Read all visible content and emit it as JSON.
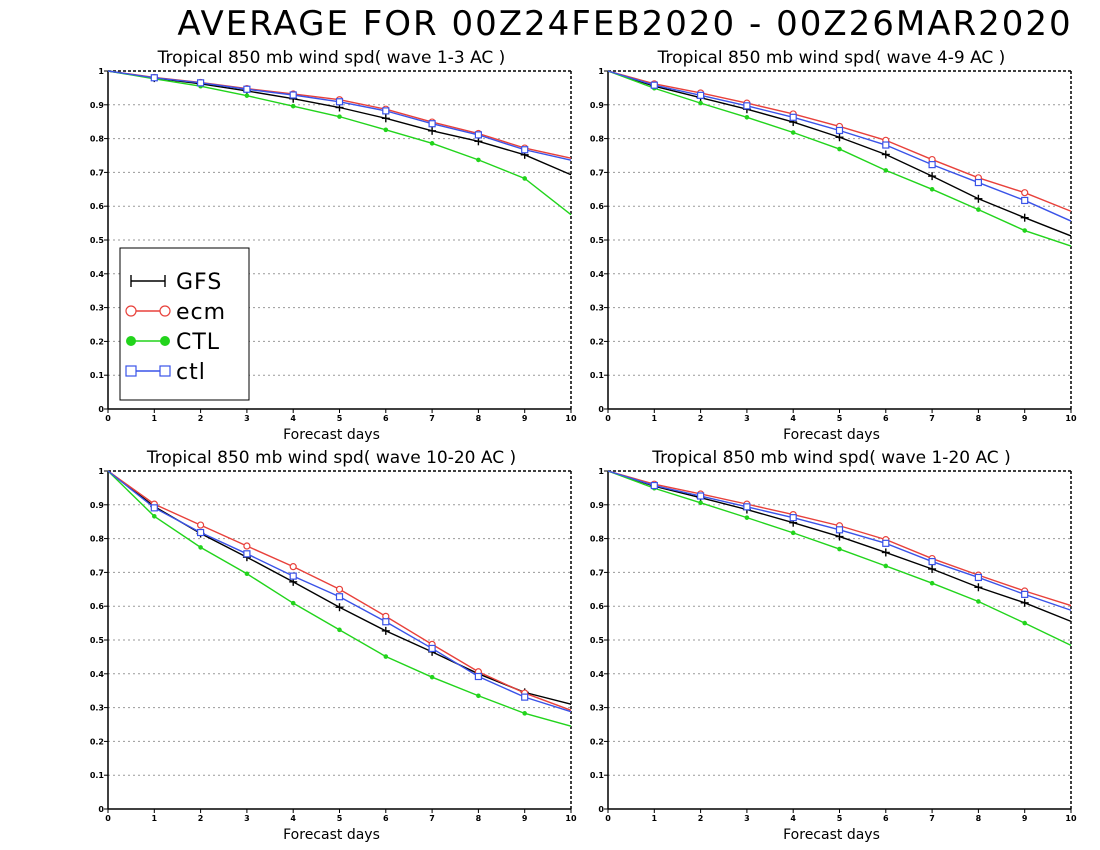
{
  "page": {
    "title": "AVERAGE FOR 00Z24FEB2020 - 00Z26MAR2020"
  },
  "colors": {
    "GFS": "#000000",
    "ecm": "#e8413b",
    "CTL": "#22d41c",
    "ctl": "#3a53e8",
    "grid": "#9a9a9a"
  },
  "legend": {
    "placement": "inside lower-left of first panel",
    "entries": [
      {
        "label": "GFS",
        "marker": "plus"
      },
      {
        "label": "ecm",
        "marker": "circle"
      },
      {
        "label": "CTL",
        "marker": "filled-circle"
      },
      {
        "label": "ctl",
        "marker": "square"
      }
    ]
  },
  "chart_data": [
    {
      "type": "line",
      "title": "Tropical 850 mb wind spd( wave 1-3 AC )",
      "xlabel": "Forecast days",
      "ylabel": "",
      "x": [
        0,
        1,
        2,
        3,
        4,
        5,
        6,
        7,
        8,
        9,
        10
      ],
      "xticks": [
        "0",
        "1",
        "2",
        "3",
        "4",
        "5",
        "6",
        "7",
        "8",
        "9",
        "10"
      ],
      "yticks": [
        "0",
        "0.1",
        "0.2",
        "0.3",
        "0.4",
        "0.5",
        "0.6",
        "0.7",
        "0.8",
        "0.9",
        "1"
      ],
      "xlim": [
        0,
        10
      ],
      "ylim": [
        0,
        1
      ],
      "grid": true,
      "legend": true,
      "series": [
        {
          "name": "GFS",
          "values": [
            1.0,
            0.979,
            0.962,
            0.941,
            0.918,
            0.892,
            0.86,
            0.823,
            0.792,
            0.752,
            0.693
          ]
        },
        {
          "name": "ecm",
          "values": [
            1.0,
            0.981,
            0.966,
            0.948,
            0.932,
            0.915,
            0.887,
            0.849,
            0.815,
            0.772,
            0.742
          ]
        },
        {
          "name": "CTL",
          "values": [
            1.0,
            0.977,
            0.955,
            0.927,
            0.896,
            0.865,
            0.826,
            0.786,
            0.737,
            0.682,
            0.575
          ]
        },
        {
          "name": "ctl",
          "values": [
            1.0,
            0.98,
            0.965,
            0.946,
            0.929,
            0.909,
            0.882,
            0.844,
            0.811,
            0.767,
            0.736
          ]
        }
      ]
    },
    {
      "type": "line",
      "title": "Tropical 850 mb wind spd( wave 4-9 AC )",
      "xlabel": "Forecast days",
      "ylabel": "",
      "x": [
        0,
        1,
        2,
        3,
        4,
        5,
        6,
        7,
        8,
        9,
        10
      ],
      "xticks": [
        "0",
        "1",
        "2",
        "3",
        "4",
        "5",
        "6",
        "7",
        "8",
        "9",
        "10"
      ],
      "yticks": [
        "0",
        "0.1",
        "0.2",
        "0.3",
        "0.4",
        "0.5",
        "0.6",
        "0.7",
        "0.8",
        "0.9",
        "1"
      ],
      "xlim": [
        0,
        10
      ],
      "ylim": [
        0,
        1
      ],
      "grid": true,
      "legend": false,
      "series": [
        {
          "name": "GFS",
          "values": [
            1.0,
            0.955,
            0.921,
            0.887,
            0.849,
            0.804,
            0.753,
            0.689,
            0.622,
            0.566,
            0.512
          ]
        },
        {
          "name": "ecm",
          "values": [
            1.0,
            0.962,
            0.935,
            0.905,
            0.873,
            0.836,
            0.795,
            0.738,
            0.684,
            0.64,
            0.585
          ]
        },
        {
          "name": "CTL",
          "values": [
            1.0,
            0.949,
            0.905,
            0.863,
            0.818,
            0.769,
            0.706,
            0.65,
            0.59,
            0.528,
            0.482
          ]
        },
        {
          "name": "ctl",
          "values": [
            1.0,
            0.958,
            0.928,
            0.897,
            0.863,
            0.824,
            0.781,
            0.723,
            0.67,
            0.617,
            0.556
          ]
        }
      ]
    },
    {
      "type": "line",
      "title": "Tropical 850 mb wind spd( wave 10-20 AC )",
      "xlabel": "Forecast days",
      "ylabel": "",
      "x": [
        0,
        1,
        2,
        3,
        4,
        5,
        6,
        7,
        8,
        9,
        10
      ],
      "xticks": [
        "0",
        "1",
        "2",
        "3",
        "4",
        "5",
        "6",
        "7",
        "8",
        "9",
        "10"
      ],
      "yticks": [
        "0",
        "0.1",
        "0.2",
        "0.3",
        "0.4",
        "0.5",
        "0.6",
        "0.7",
        "0.8",
        "0.9",
        "1"
      ],
      "xlim": [
        0,
        10
      ],
      "ylim": [
        0,
        1
      ],
      "grid": true,
      "legend": false,
      "series": [
        {
          "name": "GFS",
          "values": [
            1.0,
            0.895,
            0.815,
            0.745,
            0.672,
            0.597,
            0.527,
            0.465,
            0.4,
            0.345,
            0.31
          ]
        },
        {
          "name": "ecm",
          "values": [
            1.0,
            0.902,
            0.84,
            0.778,
            0.717,
            0.65,
            0.57,
            0.487,
            0.406,
            0.343,
            0.292
          ]
        },
        {
          "name": "CTL",
          "values": [
            1.0,
            0.866,
            0.774,
            0.696,
            0.609,
            0.53,
            0.451,
            0.39,
            0.335,
            0.283,
            0.245
          ]
        },
        {
          "name": "ctl",
          "values": [
            1.0,
            0.891,
            0.818,
            0.755,
            0.689,
            0.628,
            0.554,
            0.475,
            0.392,
            0.331,
            0.288
          ]
        }
      ]
    },
    {
      "type": "line",
      "title": "Tropical 850 mb wind spd( wave 1-20 AC )",
      "xlabel": "Forecast days",
      "ylabel": "",
      "x": [
        0,
        1,
        2,
        3,
        4,
        5,
        6,
        7,
        8,
        9,
        10
      ],
      "xticks": [
        "0",
        "1",
        "2",
        "3",
        "4",
        "5",
        "6",
        "7",
        "8",
        "9",
        "10"
      ],
      "yticks": [
        "0",
        "0.1",
        "0.2",
        "0.3",
        "0.4",
        "0.5",
        "0.6",
        "0.7",
        "0.8",
        "0.9",
        "1"
      ],
      "xlim": [
        0,
        10
      ],
      "ylim": [
        0,
        1
      ],
      "grid": true,
      "legend": false,
      "series": [
        {
          "name": "GFS",
          "values": [
            1.0,
            0.955,
            0.921,
            0.886,
            0.847,
            0.806,
            0.759,
            0.71,
            0.656,
            0.61,
            0.555
          ]
        },
        {
          "name": "ecm",
          "values": [
            1.0,
            0.961,
            0.932,
            0.902,
            0.871,
            0.838,
            0.797,
            0.741,
            0.692,
            0.645,
            0.602
          ]
        },
        {
          "name": "CTL",
          "values": [
            1.0,
            0.949,
            0.906,
            0.862,
            0.817,
            0.769,
            0.719,
            0.668,
            0.614,
            0.55,
            0.484
          ]
        },
        {
          "name": "ctl",
          "values": [
            1.0,
            0.957,
            0.926,
            0.894,
            0.862,
            0.826,
            0.786,
            0.732,
            0.685,
            0.635,
            0.588
          ]
        }
      ]
    }
  ]
}
